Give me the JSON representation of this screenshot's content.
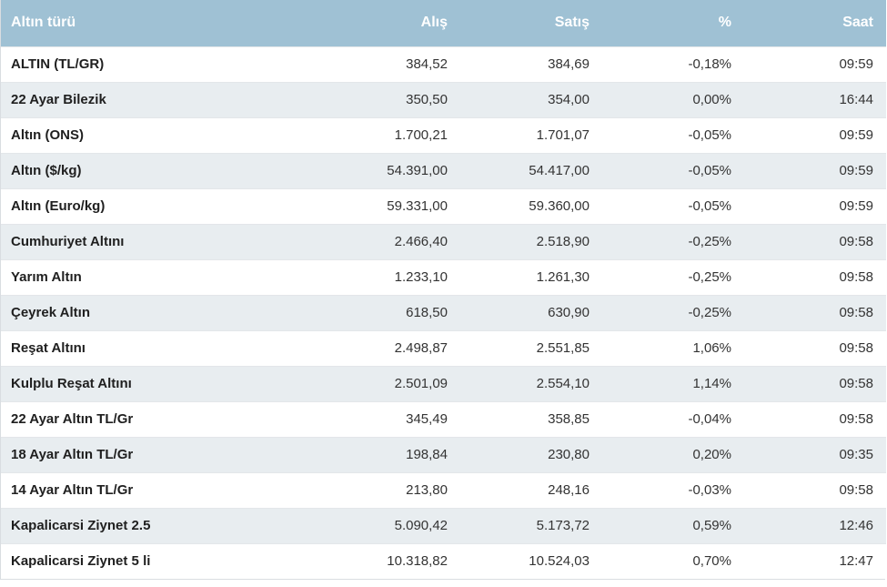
{
  "table": {
    "headers": [
      "Altın türü",
      "Alış",
      "Satış",
      "%",
      "Saat"
    ],
    "rows": [
      [
        "ALTIN (TL/GR)",
        "384,52",
        "384,69",
        "-0,18%",
        "09:59"
      ],
      [
        "22 Ayar Bilezik",
        "350,50",
        "354,00",
        "0,00%",
        "16:44"
      ],
      [
        "Altın (ONS)",
        "1.700,21",
        "1.701,07",
        "-0,05%",
        "09:59"
      ],
      [
        "Altın ($/kg)",
        "54.391,00",
        "54.417,00",
        "-0,05%",
        "09:59"
      ],
      [
        "Altın (Euro/kg)",
        "59.331,00",
        "59.360,00",
        "-0,05%",
        "09:59"
      ],
      [
        "Cumhuriyet Altını",
        "2.466,40",
        "2.518,90",
        "-0,25%",
        "09:58"
      ],
      [
        "Yarım Altın",
        "1.233,10",
        "1.261,30",
        "-0,25%",
        "09:58"
      ],
      [
        "Çeyrek Altın",
        "618,50",
        "630,90",
        "-0,25%",
        "09:58"
      ],
      [
        "Reşat Altını",
        "2.498,87",
        "2.551,85",
        "1,06%",
        "09:58"
      ],
      [
        "Kulplu Reşat Altını",
        "2.501,09",
        "2.554,10",
        "1,14%",
        "09:58"
      ],
      [
        "22 Ayar Altın TL/Gr",
        "345,49",
        "358,85",
        "-0,04%",
        "09:58"
      ],
      [
        "18 Ayar Altın TL/Gr",
        "198,84",
        "230,80",
        "0,20%",
        "09:35"
      ],
      [
        "14 Ayar Altın TL/Gr",
        "213,80",
        "248,16",
        "-0,03%",
        "09:58"
      ],
      [
        "Kapalicarsi Ziynet 2.5",
        "5.090,42",
        "5.173,72",
        "0,59%",
        "12:46"
      ],
      [
        "Kapalicarsi Ziynet 5 li",
        "10.318,82",
        "10.524,03",
        "0,70%",
        "12:47"
      ]
    ]
  },
  "colors": {
    "header_bg": "#9fc1d4",
    "stripe_bg": "#e8edf0"
  }
}
